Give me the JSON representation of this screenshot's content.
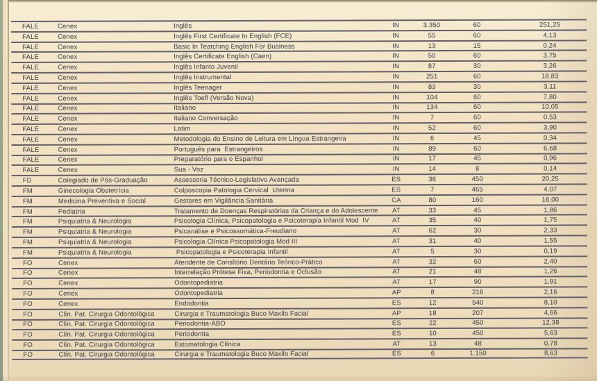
{
  "theme": {
    "page_bg": "#f2e3c3",
    "line_color": "#60606c",
    "text_color": "#4b4b54"
  },
  "table": {
    "rows": [
      [
        "FALE",
        "Cenex",
        "Inglês",
        "IN",
        "3.350",
        "60",
        "251,25"
      ],
      [
        "FALE",
        "Cenex",
        "Inglês First Certificate In English (FCE)",
        "IN",
        "55",
        "60",
        "4,13"
      ],
      [
        "FALE",
        "Cenex",
        "Basic In Teatching English For Business",
        "IN",
        "13",
        "15",
        "0,24"
      ],
      [
        "FALE",
        "Cenex",
        "Inglês Certificate English (Caen)",
        "IN",
        "50",
        "60",
        "3,75"
      ],
      [
        "FALE",
        "Cenex",
        "Inglês Infanto Juvenil",
        "IN",
        "87",
        "30",
        "3,26"
      ],
      [
        "FALE",
        "Cenex",
        "Inglês Instrumental",
        "IN",
        "251",
        "60",
        "18,83"
      ],
      [
        "FALE",
        "Cenex",
        "Inglês Teenager",
        "IN",
        "83",
        "30",
        "3,11"
      ],
      [
        "FALE",
        "Cenex",
        "Inglês Toefl (Versão Nova)",
        "IN",
        "104",
        "60",
        "7,80"
      ],
      [
        "FALE",
        "Cenex",
        "Italiano",
        "IN",
        "134",
        "60",
        "10,05"
      ],
      [
        "FALE",
        "Cenex",
        "Italiano Conversação",
        "IN",
        "7",
        "60",
        "0,53"
      ],
      [
        "FALE",
        "Cenex",
        "Latim",
        "IN",
        "52",
        "60",
        "3,90"
      ],
      [
        "FALE",
        "Cenex",
        "Metodologia do Ensino de Leitura em Língua Estrangeira",
        "IN",
        "6",
        "45",
        "0,34"
      ],
      [
        "FALE",
        "Cenex",
        "Português para  Estrangeiros",
        "IN",
        "89",
        "60",
        "6,68"
      ],
      [
        "FALE",
        "Cenex",
        "Preparatório para o Espanhol",
        "IN",
        "17",
        "45",
        "0,96"
      ],
      [
        "FALE",
        "Cenex",
        "Sua - Voz",
        "IN",
        "14",
        "8",
        "0,14"
      ],
      [
        "FD",
        "Colegiado de Pós-Graduação",
        "Assessoria Técnico-Legislativo Avançada",
        "ES",
        "36",
        "450",
        "20,25"
      ],
      [
        "FM",
        "Ginecologia Obstetrícia",
        "Colposcopia Patologia Cervical  Uterina",
        "ES",
        "7",
        "465",
        "4,07"
      ],
      [
        "FM",
        "Medicina Preventiva e Social",
        "Gestores em Vigilância Sanitária",
        "CA",
        "80",
        "160",
        "16,00"
      ],
      [
        "FM",
        "Pediatria",
        "Tratamento de Doenças Respiratórias da Criança e do Adolescente",
        "AT",
        "33",
        "45",
        "1,86"
      ],
      [
        "FM",
        "Psiquiatria & Neurologia",
        "Psicologia Clínica, Psicopatologia e Psicoterapia Infantil Mod  IV",
        "AT",
        "35",
        "40",
        "1,75"
      ],
      [
        "FM",
        "Psiquiatria & Neurologia",
        "Psicanálise e Psicossomática-Freudiano",
        "AT",
        "62",
        "30",
        "2,33"
      ],
      [
        "FM",
        "Psiquiatria & Neurologia",
        "Psicologia Clínica Psicopatologia Mod III",
        "AT",
        "31",
        "40",
        "1,55"
      ],
      [
        "FM",
        "Psiquiatria & Neurologia",
        " Psicopatologia e Psicoterapia Infantil",
        "AT",
        "5",
        "30",
        "0,19"
      ],
      [
        "FO",
        "Cenex",
        "Atendente de Consltório Dentário Teórico-Prático",
        "AT",
        "32",
        "60",
        "2,40"
      ],
      [
        "FO",
        "Cenex",
        "Interrelação Prótese Fixa, Periodontia e Oclusão",
        "AT",
        "21",
        "48",
        "1,26"
      ],
      [
        "FO",
        "Cenex",
        "Odontopediatria",
        "AT",
        "17",
        "90",
        "1,91"
      ],
      [
        "FO",
        "Cenex",
        "Odontopediatria",
        "AP",
        "8",
        "216",
        "2,16"
      ],
      [
        "FO",
        "Cenex",
        "Endodontia",
        "ES",
        "12",
        "540",
        "8,10"
      ],
      [
        "FO",
        "Clín. Pat. Cirurgia Odontológica",
        "Cirurgia e Traumatologia Buco Maxilo Facial",
        "AP",
        "18",
        "207",
        "4,66"
      ],
      [
        "FO",
        "Clín. Pat. Cirurgia Odontológica",
        "Periodontia-ABO",
        "ES",
        "22",
        "450",
        "12,38"
      ],
      [
        "FO",
        "Clín. Pat. Cirurgia Odontológica",
        "Periodontia",
        "ES",
        "10",
        "450",
        "5,63"
      ],
      [
        "FO",
        "Clín. Pat. Cirurgia Odontológica",
        "Estomatologia Clínica",
        "AT",
        "13",
        "48",
        "0,78"
      ],
      [
        "FO",
        "Clín. Pat. Cirurgia Odontológica",
        "Cirurgia e Traumatologia Buco Maxilo Facial",
        "ES",
        "6",
        "1.150",
        "8,63"
      ]
    ]
  }
}
